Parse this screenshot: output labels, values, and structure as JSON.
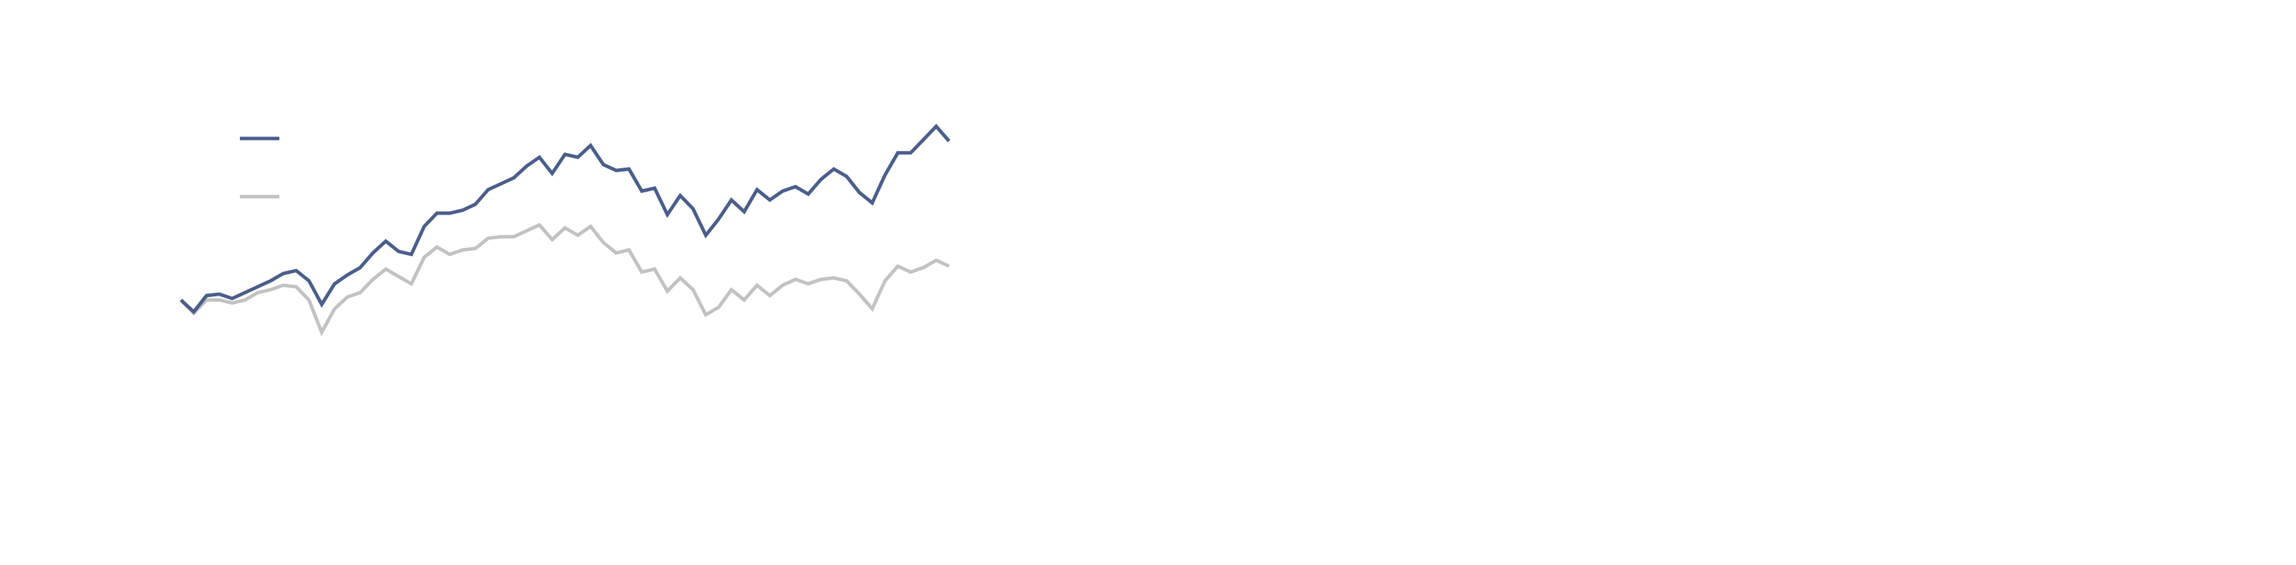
{
  "chart_data": {
    "type": "line",
    "categories": [
      null,
      null,
      null,
      null,
      null,
      null,
      null,
      null,
      null,
      null,
      null,
      null,
      null,
      null,
      null,
      null,
      null,
      null,
      null,
      null,
      null,
      null,
      null,
      null,
      null,
      null,
      null,
      null,
      null,
      null,
      null,
      null,
      null,
      null,
      null,
      null,
      null,
      null,
      null,
      null,
      null,
      null,
      null,
      null,
      null,
      null,
      null,
      null,
      null,
      null,
      null,
      null,
      null,
      null,
      null,
      null,
      null,
      null,
      null,
      null,
      null
    ],
    "series": [
      {
        "color": "#4a5e8c",
        "values": [
          0,
          -8,
          3,
          4,
          1,
          5,
          9,
          13,
          18,
          20,
          13,
          -3,
          11,
          17,
          22,
          32,
          40,
          33,
          31,
          50,
          59,
          59,
          61,
          65,
          75,
          79,
          83,
          91,
          97,
          86,
          99,
          97,
          105,
          92,
          88,
          89,
          74,
          76,
          58,
          71,
          62,
          44,
          55,
          68,
          60,
          75,
          68,
          74,
          77,
          72,
          82,
          89,
          84,
          73,
          66,
          85,
          100,
          100,
          109,
          118,
          108
        ]
      },
      {
        "color": "#c2c2c2",
        "values": [
          0,
          -9,
          0,
          0,
          -2,
          0,
          5,
          7,
          10,
          9,
          0,
          -22,
          -6,
          2,
          5,
          14,
          21,
          16,
          11,
          29,
          36,
          31,
          34,
          35,
          42,
          43,
          43,
          47,
          51,
          41,
          49,
          44,
          50,
          39,
          32,
          34,
          19,
          21,
          6,
          15,
          7,
          -10,
          -5,
          7,
          0,
          10,
          3,
          10,
          14,
          11,
          14,
          15,
          13,
          4,
          -6,
          13,
          23,
          19,
          22,
          27,
          23
        ]
      }
    ],
    "ylim": [
      -30,
      130
    ],
    "legend": "upper left"
  }
}
